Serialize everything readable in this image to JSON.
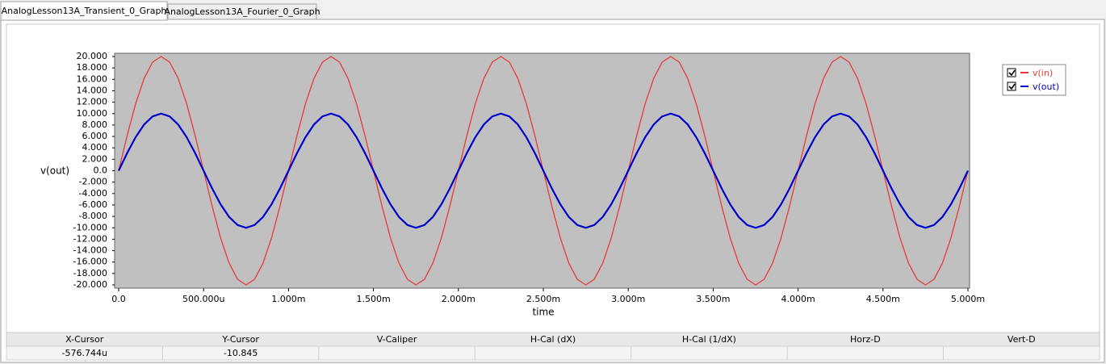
{
  "tabs": [
    "AnalogLesson13A_Transient_0_Graph",
    "AnalogLesson13A_Fourier_0_Graph"
  ],
  "chart_data": {
    "type": "line",
    "x_label": "time",
    "y_label": "v(out)",
    "x": [
      0,
      5e-05,
      0.0001,
      0.00015,
      0.0002,
      0.00025,
      0.0003,
      0.00035,
      0.0004,
      0.00045,
      0.0005,
      0.00055,
      0.0006,
      0.00065,
      0.0007,
      0.00075,
      0.0008,
      0.00085,
      0.0009,
      0.00095,
      0.001,
      0.00105,
      0.0011,
      0.00115,
      0.0012,
      0.00125,
      0.0013,
      0.00135,
      0.0014,
      0.00145,
      0.0015,
      0.00155,
      0.0016,
      0.00165,
      0.0017,
      0.00175,
      0.0018,
      0.00185,
      0.0019,
      0.00195,
      0.002,
      0.00205,
      0.0021,
      0.00215,
      0.0022,
      0.00225,
      0.0023,
      0.00235,
      0.0024,
      0.00245,
      0.0025,
      0.00255,
      0.0026,
      0.00265,
      0.0027,
      0.00275,
      0.0028,
      0.00285,
      0.0029,
      0.00295,
      0.003,
      0.00305,
      0.0031,
      0.00315,
      0.0032,
      0.00325,
      0.0033,
      0.00335,
      0.0034,
      0.00345,
      0.0035,
      0.00355,
      0.0036,
      0.00365,
      0.0037,
      0.00375,
      0.0038,
      0.00385,
      0.0039,
      0.00395,
      0.004,
      0.00405,
      0.0041,
      0.00415,
      0.0042,
      0.00425,
      0.0043,
      0.00435,
      0.0044,
      0.00445,
      0.0045,
      0.00455,
      0.0046,
      0.00465,
      0.0047,
      0.00475,
      0.0048,
      0.00485,
      0.0049,
      0.00495,
      0.005
    ],
    "series": [
      {
        "name": "v(in)",
        "color": "#e83a3a",
        "width": 1.3,
        "values": [
          0,
          6.18,
          11.76,
          16.18,
          19.02,
          20,
          19.02,
          16.18,
          11.76,
          6.18,
          0,
          -6.18,
          -11.76,
          -16.18,
          -19.02,
          -20,
          -19.02,
          -16.18,
          -11.76,
          -6.18,
          0,
          6.18,
          11.76,
          16.18,
          19.02,
          20,
          19.02,
          16.18,
          11.76,
          6.18,
          0,
          -6.18,
          -11.76,
          -16.18,
          -19.02,
          -20,
          -19.02,
          -16.18,
          -11.76,
          -6.18,
          0,
          6.18,
          11.76,
          16.18,
          19.02,
          20,
          19.02,
          16.18,
          11.76,
          6.18,
          0,
          -6.18,
          -11.76,
          -16.18,
          -19.02,
          -20,
          -19.02,
          -16.18,
          -11.76,
          -6.18,
          0,
          6.18,
          11.76,
          16.18,
          19.02,
          20,
          19.02,
          16.18,
          11.76,
          6.18,
          0,
          -6.18,
          -11.76,
          -16.18,
          -19.02,
          -20,
          -19.02,
          -16.18,
          -11.76,
          -6.18,
          0,
          6.18,
          11.76,
          16.18,
          19.02,
          20,
          19.02,
          16.18,
          11.76,
          6.18,
          0,
          -6.18,
          -11.76,
          -16.18,
          -19.02,
          -20,
          -19.02,
          -16.18,
          -11.76,
          -6.18,
          0
        ]
      },
      {
        "name": "v(out)",
        "color": "#0000cc",
        "width": 2.2,
        "values": [
          0,
          3.09,
          5.88,
          8.09,
          9.51,
          10,
          9.51,
          8.09,
          5.88,
          3.09,
          0,
          -3.09,
          -5.88,
          -8.09,
          -9.51,
          -10,
          -9.51,
          -8.09,
          -5.88,
          -3.09,
          0,
          3.09,
          5.88,
          8.09,
          9.51,
          10,
          9.51,
          8.09,
          5.88,
          3.09,
          0,
          -3.09,
          -5.88,
          -8.09,
          -9.51,
          -10,
          -9.51,
          -8.09,
          -5.88,
          -3.09,
          0,
          3.09,
          5.88,
          8.09,
          9.51,
          10,
          9.51,
          8.09,
          5.88,
          3.09,
          0,
          -3.09,
          -5.88,
          -8.09,
          -9.51,
          -10,
          -9.51,
          -8.09,
          -5.88,
          -3.09,
          0,
          3.09,
          5.88,
          8.09,
          9.51,
          10,
          9.51,
          8.09,
          5.88,
          3.09,
          0,
          -3.09,
          -5.88,
          -8.09,
          -9.51,
          -10,
          -9.51,
          -8.09,
          -5.88,
          -3.09,
          0,
          3.09,
          5.88,
          8.09,
          9.51,
          10,
          9.51,
          8.09,
          5.88,
          3.09,
          0,
          -3.09,
          -5.88,
          -8.09,
          -9.51,
          -10,
          -9.51,
          -8.09,
          -5.88,
          -3.09,
          0
        ]
      }
    ],
    "xlim": [
      0,
      0.005
    ],
    "ylim": [
      -20,
      20
    ],
    "xticks": [
      {
        "value": 0,
        "label": "0.0"
      },
      {
        "value": 0.0005,
        "label": "500.000u"
      },
      {
        "value": 0.001,
        "label": "1.000m"
      },
      {
        "value": 0.0015,
        "label": "1.500m"
      },
      {
        "value": 0.002,
        "label": "2.000m"
      },
      {
        "value": 0.0025,
        "label": "2.500m"
      },
      {
        "value": 0.003,
        "label": "3.000m"
      },
      {
        "value": 0.0035,
        "label": "3.500m"
      },
      {
        "value": 0.004,
        "label": "4.000m"
      },
      {
        "value": 0.0045,
        "label": "4.500m"
      },
      {
        "value": 0.005,
        "label": "5.000m"
      }
    ],
    "yticks": [
      {
        "value": 20,
        "label": "20.000"
      },
      {
        "value": 18,
        "label": "18.000"
      },
      {
        "value": 16,
        "label": "16.000"
      },
      {
        "value": 14,
        "label": "14.000"
      },
      {
        "value": 12,
        "label": "12.000"
      },
      {
        "value": 10,
        "label": "10.000"
      },
      {
        "value": 8,
        "label": "8.000"
      },
      {
        "value": 6,
        "label": "6.000"
      },
      {
        "value": 4,
        "label": "4.000"
      },
      {
        "value": 2,
        "label": "2.000"
      },
      {
        "value": 0,
        "label": "0.0"
      },
      {
        "value": -2,
        "label": "-2.000"
      },
      {
        "value": -4,
        "label": "-4.000"
      },
      {
        "value": -6,
        "label": "-6.000"
      },
      {
        "value": -8,
        "label": "-8.000"
      },
      {
        "value": -10,
        "label": "-10.000"
      },
      {
        "value": -12,
        "label": "-12.000"
      },
      {
        "value": -14,
        "label": "-14.000"
      },
      {
        "value": -16,
        "label": "-16.000"
      },
      {
        "value": -18,
        "label": "-18.000"
      },
      {
        "value": -20,
        "label": "-20.000"
      }
    ],
    "background": "#c0c0c0",
    "legend": "right"
  },
  "cursor_table": {
    "headers": [
      "X-Cursor",
      "Y-Cursor",
      "V-Caliper",
      "H-Cal (dX)",
      "H-Cal (1/dX)",
      "Horz-D",
      "Vert-D"
    ],
    "values": [
      "-576.744u",
      "-10.845"
    ]
  }
}
